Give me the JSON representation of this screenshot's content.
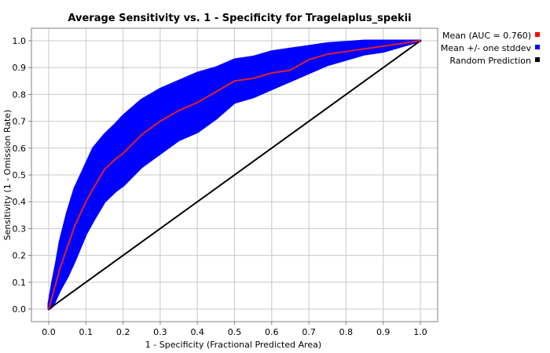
{
  "chart_data": {
    "type": "line",
    "title": "Average Sensitivity vs. 1 - Specificity for Tragelaplus_spekii",
    "xlabel": "1 - Specificity (Fractional Predicted Area)",
    "ylabel": "Sensitivity (1 - Omission Rate)",
    "xlim": [
      0.0,
      1.0
    ],
    "ylim": [
      0.0,
      1.0
    ],
    "grid": true,
    "legend_position": "right",
    "x_ticks": [
      "0.0",
      "0.1",
      "0.2",
      "0.3",
      "0.4",
      "0.5",
      "0.6",
      "0.7",
      "0.8",
      "0.9",
      "1.0"
    ],
    "y_ticks": [
      "0.0",
      "0.1",
      "0.2",
      "0.3",
      "0.4",
      "0.5",
      "0.6",
      "0.7",
      "0.8",
      "0.9",
      "1.0"
    ],
    "legend": [
      {
        "label": "Mean (AUC = 0.760)",
        "color": "#ff0000"
      },
      {
        "label": "Mean +/- one stddev",
        "color": "#0000ff"
      },
      {
        "label": "Random Prediction",
        "color": "#000000"
      }
    ],
    "series": [
      {
        "name": "Mean (AUC = 0.760)",
        "color": "#e0202a",
        "x": [
          0.0,
          0.01,
          0.02,
          0.03,
          0.05,
          0.07,
          0.1,
          0.12,
          0.15,
          0.18,
          0.2,
          0.25,
          0.3,
          0.35,
          0.4,
          0.45,
          0.5,
          0.55,
          0.6,
          0.65,
          0.7,
          0.75,
          0.8,
          0.85,
          0.9,
          0.95,
          1.0
        ],
        "y": [
          0.0,
          0.05,
          0.1,
          0.15,
          0.23,
          0.31,
          0.4,
          0.45,
          0.52,
          0.56,
          0.58,
          0.65,
          0.7,
          0.74,
          0.77,
          0.81,
          0.85,
          0.86,
          0.88,
          0.89,
          0.93,
          0.95,
          0.96,
          0.97,
          0.98,
          0.99,
          1.0
        ]
      },
      {
        "name": "Mean +/- one stddev",
        "color": "#0000ff",
        "x": [
          0.0,
          0.01,
          0.02,
          0.03,
          0.05,
          0.07,
          0.1,
          0.12,
          0.15,
          0.18,
          0.2,
          0.25,
          0.3,
          0.35,
          0.4,
          0.45,
          0.5,
          0.55,
          0.6,
          0.65,
          0.7,
          0.75,
          0.8,
          0.85,
          0.9,
          0.95,
          1.0
        ],
        "upper": [
          0.02,
          0.1,
          0.17,
          0.25,
          0.36,
          0.45,
          0.54,
          0.6,
          0.65,
          0.69,
          0.72,
          0.78,
          0.82,
          0.85,
          0.88,
          0.9,
          0.93,
          0.94,
          0.96,
          0.97,
          0.98,
          0.99,
          0.995,
          1.0,
          1.0,
          1.0,
          1.0
        ],
        "lower": [
          0.0,
          0.01,
          0.04,
          0.07,
          0.12,
          0.18,
          0.28,
          0.33,
          0.4,
          0.44,
          0.46,
          0.53,
          0.58,
          0.63,
          0.66,
          0.71,
          0.77,
          0.79,
          0.82,
          0.85,
          0.88,
          0.91,
          0.93,
          0.95,
          0.96,
          0.98,
          1.0
        ]
      },
      {
        "name": "Random Prediction",
        "color": "#000000",
        "x": [
          0.0,
          1.0
        ],
        "y": [
          0.0,
          1.0
        ]
      }
    ]
  }
}
